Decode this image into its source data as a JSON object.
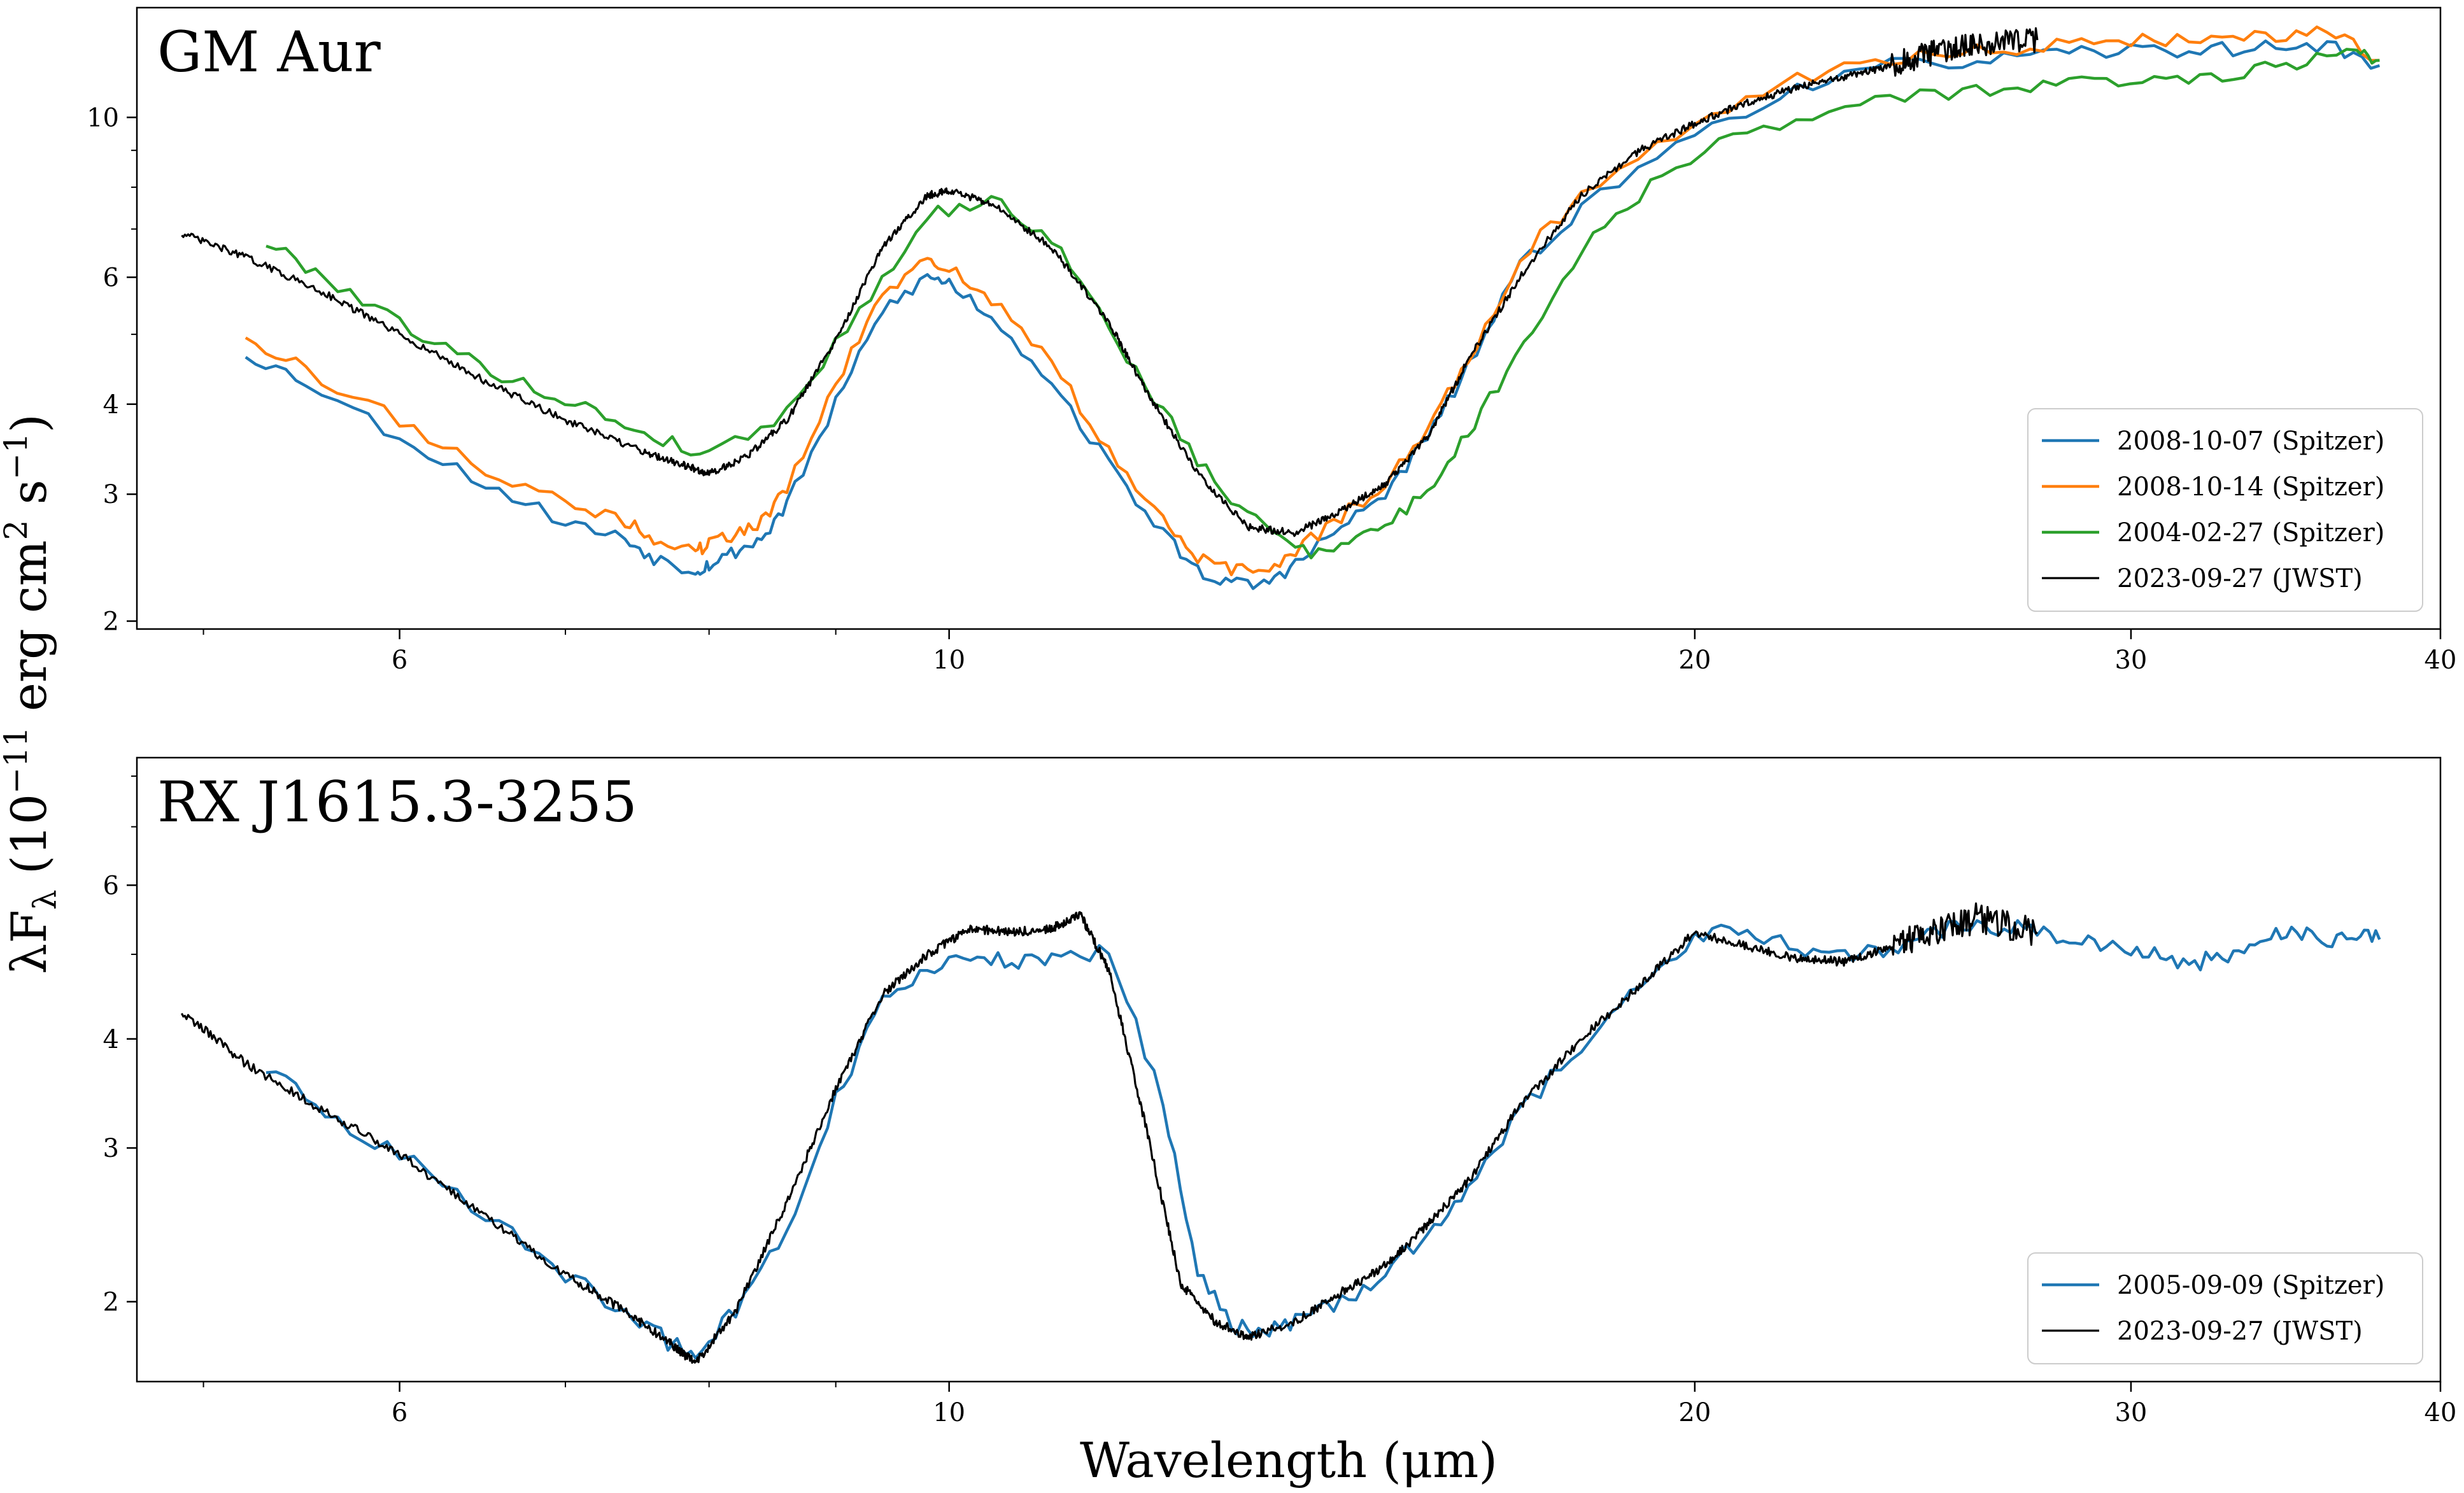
{
  "chart_data": [
    {
      "type": "line",
      "title": "GM Aur",
      "xscale": "log",
      "yscale": "log",
      "xlim": [
        4.7,
        40
      ],
      "ylim": [
        1.95,
        14.2
      ],
      "x_ticks": [
        6,
        10,
        20,
        30,
        40
      ],
      "y_ticks": [
        2,
        3,
        4,
        6,
        10
      ],
      "xlabel": "",
      "ylabel": "",
      "legend_position": "lower-right",
      "series": [
        {
          "name": "2008-10-07 (Spitzer)",
          "color": "#1f77b4",
          "x": [
            5.2,
            5.5,
            6.0,
            6.5,
            7.0,
            7.4,
            7.6,
            7.9,
            8.0,
            8.2,
            8.4,
            8.6,
            9.0,
            9.4,
            9.8,
            10.0,
            10.4,
            11.0,
            11.6,
            12.2,
            12.6,
            13.0,
            13.4,
            13.8,
            14.4,
            15.0,
            15.6,
            16.2,
            17.0,
            18.0,
            20.0,
            22.0,
            24.0,
            26.0,
            28.0,
            30.0,
            32.0,
            34.0,
            36.0,
            37.8
          ],
          "y": [
            4.7,
            4.3,
            3.6,
            3.1,
            2.75,
            2.6,
            2.45,
            2.35,
            2.4,
            2.5,
            2.6,
            2.9,
            4.0,
            5.4,
            6.0,
            5.9,
            5.3,
            4.3,
            3.3,
            2.65,
            2.35,
            2.25,
            2.25,
            2.4,
            2.7,
            3.0,
            3.6,
            4.5,
            6.2,
            7.5,
            9.5,
            11.0,
            11.8,
            12.0,
            12.2,
            12.4,
            12.4,
            12.5,
            12.6,
            11.8
          ]
        },
        {
          "name": "2008-10-14 (Spitzer)",
          "color": "#ff7f0e",
          "x": [
            5.2,
            5.5,
            6.0,
            6.5,
            7.0,
            7.4,
            7.6,
            7.9,
            8.0,
            8.2,
            8.4,
            8.6,
            9.0,
            9.4,
            9.8,
            10.0,
            10.4,
            11.0,
            11.6,
            12.2,
            12.6,
            13.0,
            13.4,
            13.8,
            14.4,
            15.0,
            15.6,
            16.2,
            17.0,
            18.0,
            20.0,
            22.0,
            24.0,
            26.0,
            28.0,
            30.0,
            32.0,
            34.0,
            36.0,
            37.8
          ],
          "y": [
            5.0,
            4.45,
            3.8,
            3.25,
            2.9,
            2.75,
            2.6,
            2.5,
            2.55,
            2.65,
            2.75,
            3.05,
            4.25,
            5.7,
            6.3,
            6.2,
            5.6,
            4.55,
            3.45,
            2.75,
            2.45,
            2.35,
            2.35,
            2.5,
            2.8,
            3.1,
            3.7,
            4.6,
            6.4,
            7.8,
            9.8,
            11.3,
            12.1,
            12.4,
            12.6,
            12.8,
            12.8,
            13.0,
            13.2,
            12.0
          ]
        },
        {
          "name": "2004-02-27 (Spitzer)",
          "color": "#2ca02c",
          "x": [
            5.3,
            5.6,
            6.0,
            6.4,
            6.8,
            7.2,
            7.6,
            8.0,
            8.6,
            9.2,
            9.8,
            10.4,
            11.0,
            11.6,
            12.2,
            12.8,
            13.4,
            14.0,
            14.6,
            15.2,
            15.8,
            16.4,
            17.2,
            18.2,
            19.4,
            21.0,
            23.0,
            25.0,
            27.0,
            29.0,
            31.0,
            33.0,
            35.0,
            37.0,
            37.8
          ],
          "y": [
            6.7,
            6.0,
            5.2,
            4.6,
            4.2,
            3.9,
            3.6,
            3.4,
            3.9,
            5.4,
            7.3,
            7.7,
            6.8,
            5.1,
            3.9,
            3.1,
            2.7,
            2.5,
            2.6,
            2.8,
            3.2,
            3.9,
            5.1,
            6.9,
            8.3,
            9.6,
            10.3,
            10.8,
            11.0,
            11.2,
            11.3,
            11.5,
            11.9,
            12.5,
            12.0
          ]
        },
        {
          "name": "2023-09-27 (JWST)",
          "color": "#000000",
          "x": [
            4.9,
            5.2,
            5.6,
            6.0,
            6.5,
            7.0,
            7.5,
            7.8,
            8.0,
            8.3,
            8.6,
            9.0,
            9.4,
            9.8,
            10.0,
            10.4,
            11.0,
            11.6,
            12.0,
            12.6,
            13.2,
            13.8,
            14.4,
            15.0,
            15.6,
            16.2,
            17.0,
            18.0,
            19.0,
            20.0,
            21.0,
            22.0,
            23.0,
            24.0,
            25.0,
            26.0,
            27.5
          ],
          "y": [
            6.9,
            6.4,
            5.7,
            5.0,
            4.3,
            3.8,
            3.45,
            3.3,
            3.2,
            3.4,
            3.8,
            4.9,
            6.6,
            7.8,
            7.9,
            7.6,
            6.6,
            5.2,
            4.2,
            3.2,
            2.7,
            2.65,
            2.85,
            3.1,
            3.6,
            4.6,
            6.0,
            7.8,
            9.0,
            9.8,
            10.5,
            11.0,
            11.4,
            11.8,
            12.3,
            12.6,
            12.8
          ]
        }
      ]
    },
    {
      "type": "line",
      "title": "RX J1615.3-3255",
      "xscale": "log",
      "yscale": "log",
      "xlim": [
        4.7,
        40
      ],
      "ylim": [
        1.62,
        8.4
      ],
      "x_ticks": [
        6,
        10,
        20,
        30,
        40
      ],
      "y_ticks": [
        2,
        3,
        4,
        6
      ],
      "xlabel": "Wavelength (μm)",
      "ylabel": "",
      "legend_position": "lower-right",
      "series": [
        {
          "name": "2005-09-09 (Spitzer)",
          "color": "#1f77b4",
          "x": [
            5.3,
            5.6,
            6.0,
            6.5,
            7.0,
            7.4,
            7.7,
            7.9,
            8.2,
            8.6,
            9.0,
            9.4,
            9.8,
            10.2,
            10.6,
            11.0,
            11.6,
            12.2,
            12.6,
            13.0,
            13.4,
            13.8,
            14.4,
            15.0,
            15.6,
            16.2,
            17.0,
            18.0,
            19.0,
            20.0,
            21.0,
            22.0,
            23.0,
            24.0,
            25.0,
            26.0,
            27.0,
            28.0,
            29.0,
            30.0,
            31.0,
            32.0,
            33.0,
            34.0,
            35.0,
            36.0,
            37.0,
            37.8
          ],
          "y": [
            3.7,
            3.3,
            2.95,
            2.5,
            2.15,
            1.95,
            1.8,
            1.75,
            1.95,
            2.4,
            3.4,
            4.4,
            4.8,
            4.95,
            4.9,
            4.95,
            5.05,
            3.4,
            2.15,
            1.88,
            1.85,
            1.9,
            2.0,
            2.15,
            2.4,
            2.7,
            3.3,
            3.95,
            4.6,
            5.25,
            5.35,
            5.05,
            4.95,
            5.1,
            5.3,
            5.4,
            5.35,
            5.25,
            5.15,
            5.05,
            4.95,
            4.9,
            5.0,
            5.2,
            5.3,
            5.15,
            5.3,
            5.2
          ]
        },
        {
          "name": "2023-09-27 (JWST)",
          "color": "#000000",
          "x": [
            4.9,
            5.2,
            5.6,
            6.0,
            6.5,
            7.0,
            7.4,
            7.7,
            7.9,
            8.2,
            8.6,
            9.0,
            9.4,
            9.8,
            10.2,
            10.6,
            11.0,
            11.3,
            11.6,
            12.0,
            12.4,
            12.8,
            13.2,
            13.8,
            14.4,
            15.0,
            15.6,
            16.2,
            17.0,
            18.0,
            19.0,
            20.0,
            21.0,
            22.0,
            23.0,
            24.0,
            25.0,
            26.0,
            27.5
          ],
          "y": [
            4.3,
            3.75,
            3.3,
            2.95,
            2.5,
            2.15,
            1.95,
            1.8,
            1.7,
            1.95,
            2.6,
            3.5,
            4.5,
            5.0,
            5.35,
            5.3,
            5.35,
            5.55,
            4.8,
            3.2,
            2.1,
            1.9,
            1.82,
            1.9,
            2.05,
            2.2,
            2.45,
            2.75,
            3.35,
            4.0,
            4.6,
            5.3,
            5.1,
            4.95,
            4.9,
            5.1,
            5.3,
            5.5,
            5.3
          ]
        }
      ]
    }
  ],
  "shared_ylabel": "λF<sub>λ</sub> (10<sup>−11</sup> erg cm<sup>2</sup> s<sup>−1</sup>)"
}
